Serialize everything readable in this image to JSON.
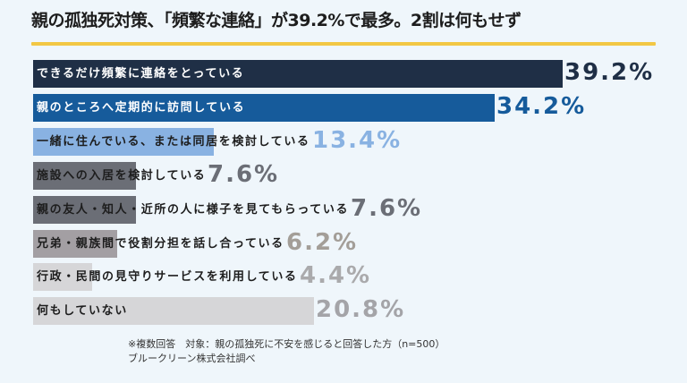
{
  "title": "親の孤独死対策、「頻繁な連絡」が39.2%で最多。2割は何もせず",
  "colors": {
    "background": "#eff6fb",
    "underline": "#f2c744"
  },
  "footnote": {
    "line1": "※複数回答　対象：親の孤独死に不安を感じると回答した方（n=500）",
    "line2": "ブルークリーン株式会社調べ"
  },
  "rows": [
    {
      "label": "できるだけ頻繁に連絡をとっている",
      "value_text": "39.2%",
      "bar": "#1f2f46",
      "label_color": "#ffffff",
      "value_color": "#1f2f46"
    },
    {
      "label": "親のところへ定期的に訪問している",
      "value_text": "34.2%",
      "bar": "#165b9b",
      "label_color": "#ffffff",
      "value_color": "#165b9b"
    },
    {
      "label": "一緒に住んでいる、または同居を検討している",
      "value_text": "13.4%",
      "bar": "#89b2e2",
      "label_color": "#1d1d1d",
      "value_color": "#89b2e2"
    },
    {
      "label": "施設への入居を検討している",
      "value_text": "7.6%",
      "bar": "#6b6e76",
      "label_color": "#1d1d1d",
      "value_color": "#6b6e76"
    },
    {
      "label": "親の友人・知人・近所の人に様子を見てもらっている",
      "value_text": "7.6%",
      "bar": "#6b6e76",
      "label_color": "#1d1d1d",
      "value_color": "#6b6e76"
    },
    {
      "label": "兄弟・親族間で役割分担を話し合っている",
      "value_text": "6.2%",
      "bar": "#a39fa3",
      "label_color": "#1d1d1d",
      "value_color": "#a39e98"
    },
    {
      "label": "行政・民間の見守りサービスを利用している",
      "value_text": "4.4%",
      "bar": "#d6d6d8",
      "label_color": "#1d1d1d",
      "value_color": "#aaaaac"
    },
    {
      "label": "何もしていない",
      "value_text": "20.8%",
      "bar": "#d6d6d8",
      "label_color": "#1d1d1d",
      "value_color": "#a4a4a8"
    }
  ],
  "chart_data": {
    "type": "bar",
    "orientation": "horizontal",
    "title": "親の孤独死対策、「頻繁な連絡」が39.2%で最多。2割は何もせず",
    "categories": [
      "できるだけ頻繁に連絡をとっている",
      "親のところへ定期的に訪問している",
      "一緒に住んでいる、または同居を検討している",
      "施設への入居を検討している",
      "親の友人・知人・近所の人に様子を見てもらっている",
      "兄弟・親族間で役割分担を話し合っている",
      "行政・民間の見守りサービスを利用している",
      "何もしていない"
    ],
    "values": [
      39.2,
      34.2,
      13.4,
      7.6,
      7.6,
      6.2,
      4.4,
      20.8
    ],
    "unit": "%",
    "xlabel": "",
    "ylabel": "",
    "grid": false,
    "legend": null,
    "annotations": [
      "※複数回答　対象：親の孤独死に不安を感じると回答した方（n=500）",
      "ブルークリーン株式会社調べ"
    ]
  }
}
